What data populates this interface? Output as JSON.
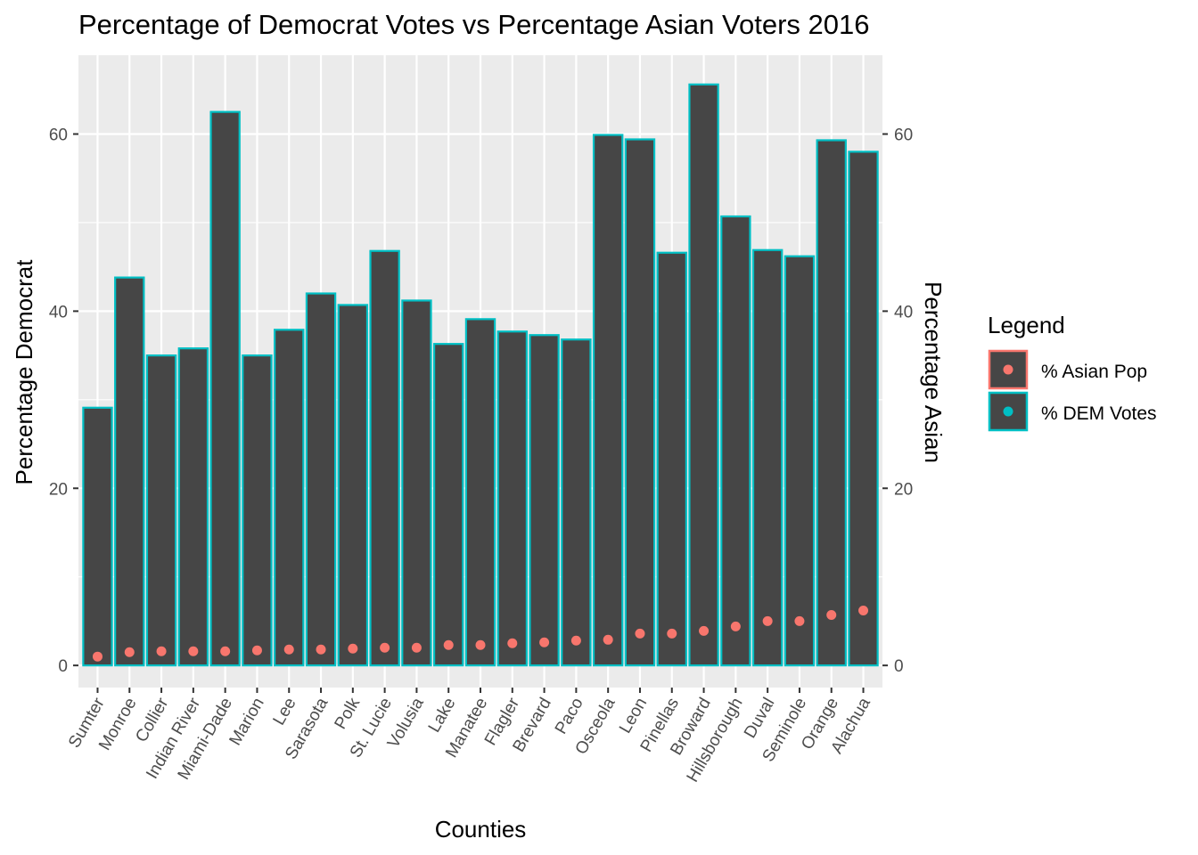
{
  "chart_data": {
    "type": "bar",
    "title": "Percentage of Democrat Votes vs Percentage Asian Voters 2016",
    "xlabel": "Counties",
    "ylabel": "Percentage Democrat",
    "ylabel_right": "Percentage Asian",
    "ylim": [
      -2.5,
      68.9
    ],
    "yticks": [
      0,
      20,
      40,
      60
    ],
    "y2ticks": [
      0,
      20,
      40,
      60
    ],
    "grid": true,
    "legend_position": "right",
    "legend": {
      "title": "Legend",
      "entries": [
        {
          "label": "% Asian Pop",
          "color": "#F8766D"
        },
        {
          "label": "% DEM Votes",
          "color": "#00BFC4"
        }
      ]
    },
    "categories": [
      "Sumter",
      "Monroe",
      "Collier",
      "Indian River",
      "Miami-Dade",
      "Marion",
      "Lee",
      "Sarasota",
      "Polk",
      "St. Lucie",
      "Volusia",
      "Lake",
      "Manatee",
      "Flagler",
      "Brevard",
      "Paco",
      "Osceola",
      "Leon",
      "Pinellas",
      "Broward",
      "Hillsborough",
      "Duval",
      "Seminole",
      "Orange",
      "Alachua"
    ],
    "series": [
      {
        "name": "% DEM Votes",
        "geom": "bar",
        "fill": "#464646",
        "outline": "#00BFC4",
        "values": [
          29.1,
          43.8,
          35.0,
          35.8,
          62.5,
          35.0,
          37.9,
          42.0,
          40.7,
          46.8,
          41.2,
          36.3,
          39.1,
          37.7,
          37.3,
          36.8,
          59.9,
          59.4,
          46.6,
          65.6,
          50.7,
          46.9,
          46.2,
          59.3,
          58.0
        ]
      },
      {
        "name": "% Asian Pop",
        "geom": "point",
        "color": "#F8766D",
        "values": [
          1.0,
          1.5,
          1.6,
          1.6,
          1.6,
          1.7,
          1.8,
          1.8,
          1.9,
          2.0,
          2.0,
          2.3,
          2.3,
          2.5,
          2.6,
          2.8,
          2.9,
          3.6,
          3.6,
          3.9,
          4.4,
          5.0,
          5.0,
          5.7,
          6.2
        ]
      }
    ]
  },
  "colors": {
    "panel_bg": "#EBEBEB",
    "grid": "#FFFFFF",
    "bar_fill": "#464646",
    "bar_outline": "#00BFC4",
    "point": "#F8766D",
    "text": "#000000",
    "tick_text": "#4D4D4D"
  }
}
